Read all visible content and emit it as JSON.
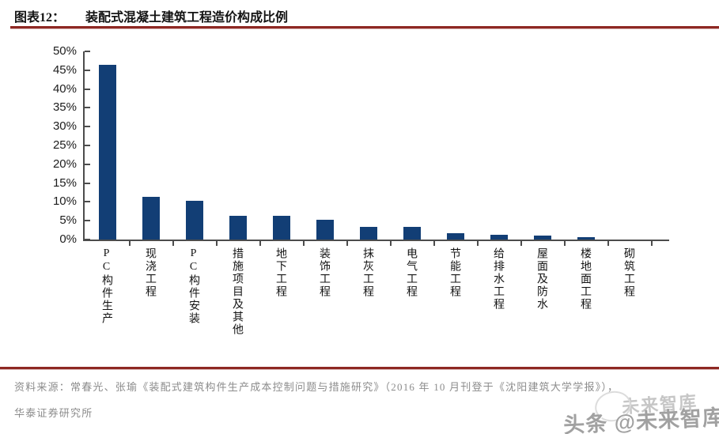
{
  "header": {
    "figure_label": "图表12：",
    "title": "装配式混凝土建筑工程造价构成比例"
  },
  "chart_data": {
    "type": "bar",
    "title": "装配式混凝土建筑工程造价构成比例",
    "categories": [
      "PC构件生产",
      "现浇工程",
      "PC构件安装",
      "措施项目及其他",
      "地下工程",
      "装饰工程",
      "抹灰工程",
      "电气工程",
      "节能工程",
      "给排水工程",
      "屋面及防水",
      "楼地面工程",
      "砌筑工程"
    ],
    "values": [
      46.5,
      11.4,
      10.2,
      6.4,
      6.3,
      5.2,
      3.4,
      3.3,
      1.6,
      1.3,
      1.0,
      0.6,
      0.1
    ],
    "unit": "%",
    "xlabel": "",
    "ylabel": "",
    "ylim": [
      0,
      50
    ],
    "ytick_step": 5,
    "yticks": [
      "50%",
      "45%",
      "40%",
      "35%",
      "30%",
      "25%",
      "20%",
      "15%",
      "10%",
      "5%",
      "0%"
    ],
    "grid": false,
    "legend": "none",
    "bar_color": "#123e75",
    "axis_color": "#4c4c4c"
  },
  "footer": {
    "source_line1": "资料来源：常春光、张瑜《装配式建筑构件生产成本控制问题与措施研究》（2016 年 10 月刊登于《沈阳建筑大学学报》），",
    "source_line2": "华泰证券研究所"
  },
  "watermark": {
    "main_text": "头条 @未来智库",
    "ghost_text": "未来智库"
  },
  "colors": {
    "rule": "#8e2823",
    "footer_text": "#8c8c8c",
    "watermark": "#a1a1a1"
  }
}
